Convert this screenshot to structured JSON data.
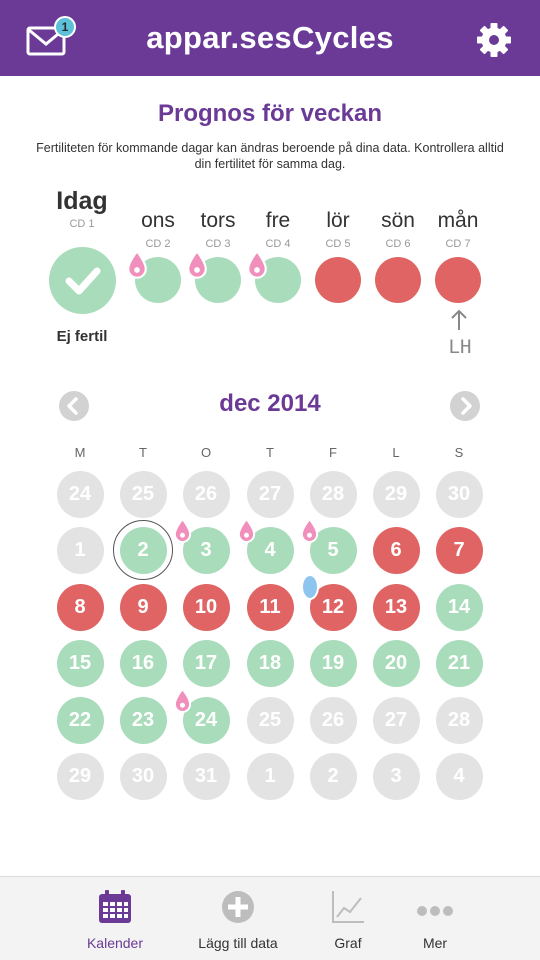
{
  "header": {
    "title": "appar.sesCycles",
    "mail_badge": "1"
  },
  "forecast": {
    "title": "Prognos för veckan",
    "description": "Fertiliteten för kommande dagar kan ändras beroende på dina data. Kontrollera alltid din fertilitet för samma dag.",
    "today_status": "Ej fertil",
    "lh_label": "LH",
    "days": [
      {
        "name": "Idag",
        "cd": "CD 1",
        "status": "today-not-fertile"
      },
      {
        "name": "ons",
        "cd": "CD 2",
        "status": "fertile-drop"
      },
      {
        "name": "tors",
        "cd": "CD 3",
        "status": "fertile-drop"
      },
      {
        "name": "fre",
        "cd": "CD 4",
        "status": "fertile-drop"
      },
      {
        "name": "lör",
        "cd": "CD 5",
        "status": "period"
      },
      {
        "name": "sön",
        "cd": "CD 6",
        "status": "period"
      },
      {
        "name": "mån",
        "cd": "CD 7",
        "status": "period"
      }
    ]
  },
  "calendar": {
    "month_label": "dec 2014",
    "weekdays": [
      "M",
      "T",
      "O",
      "T",
      "F",
      "L",
      "S"
    ],
    "weeks": [
      [
        {
          "d": "24",
          "s": "gray"
        },
        {
          "d": "25",
          "s": "gray"
        },
        {
          "d": "26",
          "s": "gray"
        },
        {
          "d": "27",
          "s": "gray"
        },
        {
          "d": "28",
          "s": "gray"
        },
        {
          "d": "29",
          "s": "gray"
        },
        {
          "d": "30",
          "s": "gray"
        }
      ],
      [
        {
          "d": "1",
          "s": "gray"
        },
        {
          "d": "2",
          "s": "green",
          "today": true
        },
        {
          "d": "3",
          "s": "green",
          "drop": true
        },
        {
          "d": "4",
          "s": "green",
          "drop": true
        },
        {
          "d": "5",
          "s": "green",
          "drop": true
        },
        {
          "d": "6",
          "s": "red"
        },
        {
          "d": "7",
          "s": "red"
        }
      ],
      [
        {
          "d": "8",
          "s": "red"
        },
        {
          "d": "9",
          "s": "red"
        },
        {
          "d": "10",
          "s": "red"
        },
        {
          "d": "11",
          "s": "red"
        },
        {
          "d": "12",
          "s": "red",
          "ovulation": true
        },
        {
          "d": "13",
          "s": "red"
        },
        {
          "d": "14",
          "s": "green"
        }
      ],
      [
        {
          "d": "15",
          "s": "green"
        },
        {
          "d": "16",
          "s": "green"
        },
        {
          "d": "17",
          "s": "green"
        },
        {
          "d": "18",
          "s": "green"
        },
        {
          "d": "19",
          "s": "green"
        },
        {
          "d": "20",
          "s": "green"
        },
        {
          "d": "21",
          "s": "green"
        }
      ],
      [
        {
          "d": "22",
          "s": "green"
        },
        {
          "d": "23",
          "s": "green"
        },
        {
          "d": "24",
          "s": "green",
          "drop": true
        },
        {
          "d": "25",
          "s": "gray"
        },
        {
          "d": "26",
          "s": "gray"
        },
        {
          "d": "27",
          "s": "gray"
        },
        {
          "d": "28",
          "s": "gray"
        }
      ],
      [
        {
          "d": "29",
          "s": "gray"
        },
        {
          "d": "30",
          "s": "gray"
        },
        {
          "d": "31",
          "s": "gray"
        },
        {
          "d": "1",
          "s": "gray"
        },
        {
          "d": "2",
          "s": "gray"
        },
        {
          "d": "3",
          "s": "gray"
        },
        {
          "d": "4",
          "s": "gray"
        }
      ]
    ]
  },
  "colors": {
    "brand": "#6a3a96",
    "fertile": "#a9dcbb",
    "period": "#e06464",
    "inactive": "#e3e3e3",
    "drop": "#f08fbb",
    "ovulation": "#8ec5ee"
  },
  "tabbar": [
    {
      "label": "Kalender",
      "icon": "calendar-icon",
      "active": true
    },
    {
      "label": "Lägg till data",
      "icon": "plus-circle-icon",
      "active": false
    },
    {
      "label": "Graf",
      "icon": "graph-icon",
      "active": false
    },
    {
      "label": "Mer",
      "icon": "more-dots-icon",
      "active": false
    }
  ]
}
